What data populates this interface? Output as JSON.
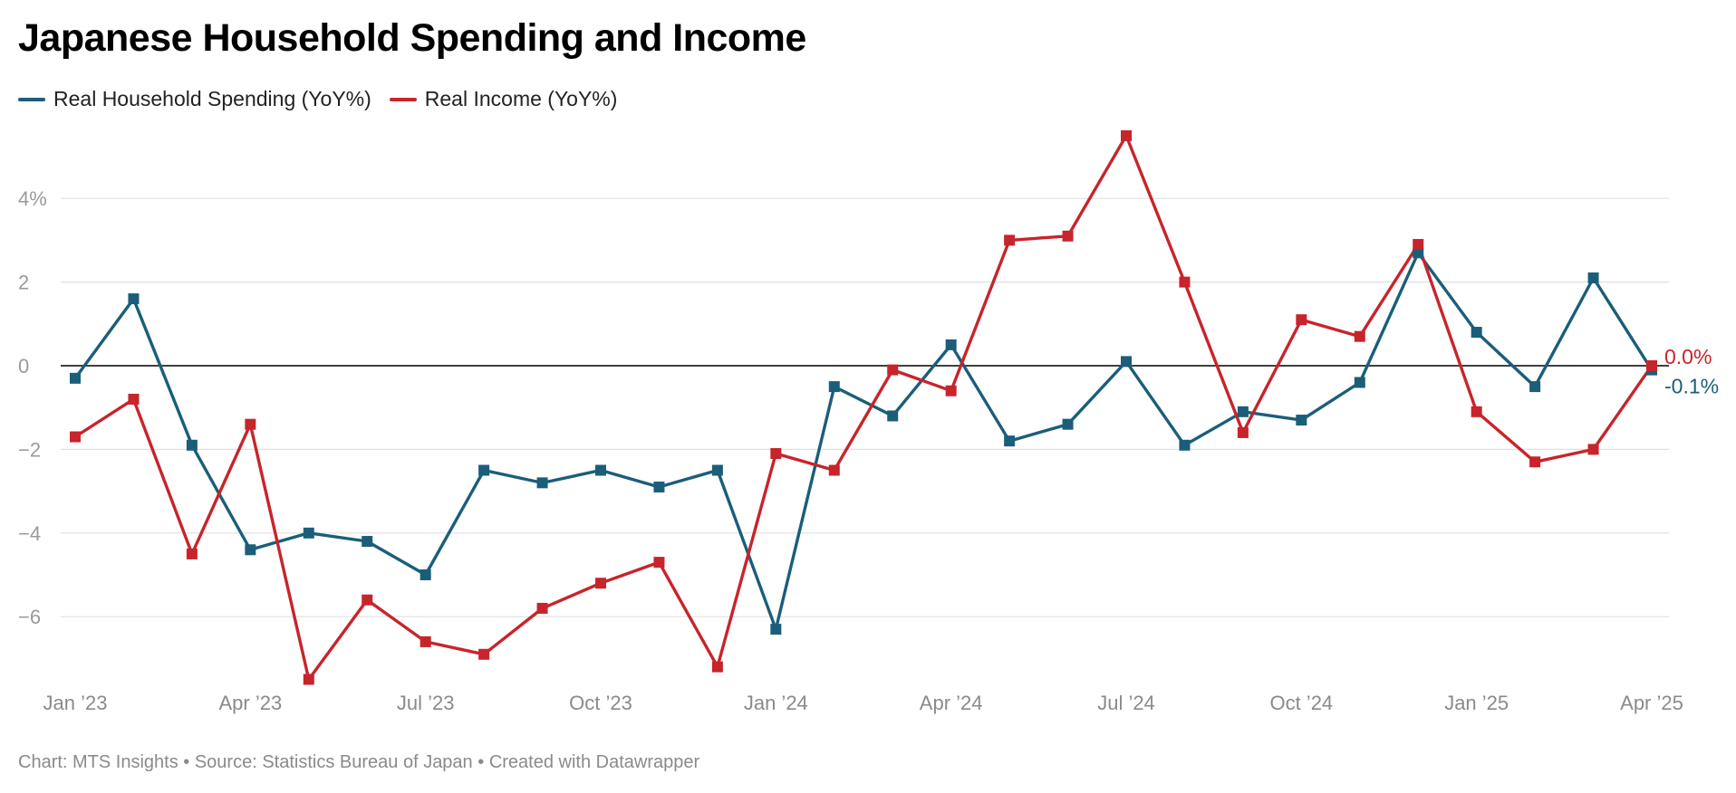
{
  "title": "Japanese Household Spending and Income",
  "footer": {
    "credit": "Chart: MTS Insights",
    "source": "Source: Statistics Bureau of Japan",
    "tool": "Created with Datawrapper",
    "separator": " • "
  },
  "chart_data": {
    "type": "line",
    "x": [
      "2023-01",
      "2023-02",
      "2023-03",
      "2023-04",
      "2023-05",
      "2023-06",
      "2023-07",
      "2023-08",
      "2023-09",
      "2023-10",
      "2023-11",
      "2023-12",
      "2024-01",
      "2024-02",
      "2024-03",
      "2024-04",
      "2024-05",
      "2024-06",
      "2024-07",
      "2024-08",
      "2024-09",
      "2024-10",
      "2024-11",
      "2024-12",
      "2025-01",
      "2025-02",
      "2025-03",
      "2025-04"
    ],
    "x_ticks": [
      {
        "label": "Jan ’23",
        "index": 0
      },
      {
        "label": "Apr ’23",
        "index": 3
      },
      {
        "label": "Jul ’23",
        "index": 6
      },
      {
        "label": "Oct ’23",
        "index": 9
      },
      {
        "label": "Jan ’24",
        "index": 12
      },
      {
        "label": "Apr ’24",
        "index": 15
      },
      {
        "label": "Jul ’24",
        "index": 18
      },
      {
        "label": "Oct ’24",
        "index": 21
      },
      {
        "label": "Jan ’25",
        "index": 24
      },
      {
        "label": "Apr ’25",
        "index": 27
      }
    ],
    "y_ticks": [
      {
        "value": 4,
        "label": "4%"
      },
      {
        "value": 2,
        "label": "2"
      },
      {
        "value": 0,
        "label": "0"
      },
      {
        "value": -2,
        "label": "−2"
      },
      {
        "value": -4,
        "label": "−4"
      },
      {
        "value": -6,
        "label": "−6"
      }
    ],
    "ylim": [
      -7.5,
      5.5
    ],
    "grid": true,
    "legend_position": "top-left",
    "series": [
      {
        "name": "Real Household Spending (YoY%)",
        "color": "#1a5e7a",
        "values": [
          -0.3,
          1.6,
          -1.9,
          -4.4,
          -4.0,
          -4.2,
          -5.0,
          -2.5,
          -2.8,
          -2.5,
          -2.9,
          -2.5,
          -6.3,
          -0.5,
          -1.2,
          0.5,
          -1.8,
          -1.4,
          0.1,
          -1.9,
          -1.1,
          -1.3,
          -0.4,
          2.7,
          0.8,
          -0.5,
          2.1,
          -0.1
        ],
        "end_label": "-0.1%"
      },
      {
        "name": "Real Income (YoY%)",
        "color": "#c8242b",
        "values": [
          -1.7,
          -0.8,
          -4.5,
          -1.4,
          -7.5,
          -5.6,
          -6.6,
          -6.9,
          -5.8,
          -5.2,
          -4.7,
          -7.2,
          -2.1,
          -2.5,
          -0.1,
          -0.6,
          3.0,
          3.1,
          5.5,
          2.0,
          -1.6,
          1.1,
          0.7,
          2.9,
          -1.1,
          -2.3,
          -2.0,
          0.0
        ],
        "end_label": "0.0%"
      }
    ]
  }
}
